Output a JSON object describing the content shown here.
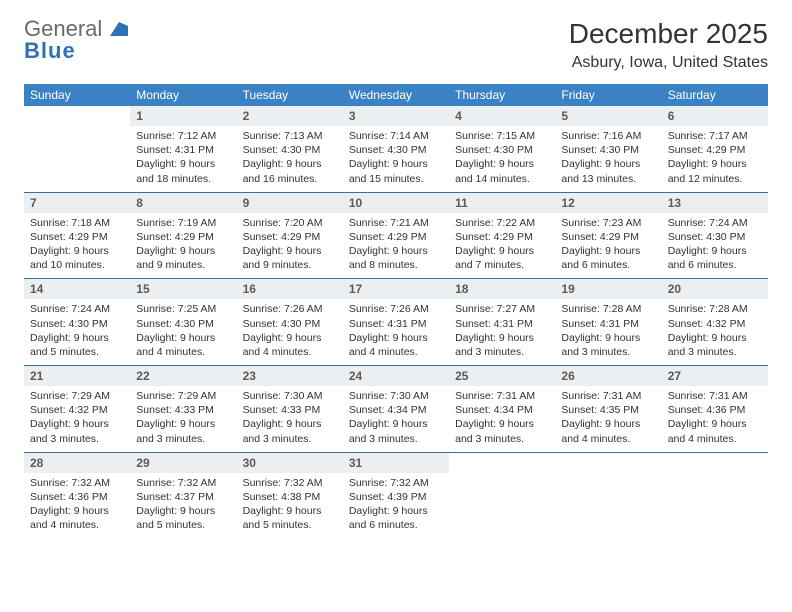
{
  "logo": {
    "part1": "General",
    "part2": "Blue"
  },
  "title": "December 2025",
  "location": "Asbury, Iowa, United States",
  "colors": {
    "header_bg": "#3b82c4",
    "header_fg": "#ffffff",
    "row_divider": "#3b6ea0",
    "daynum_bg": "#eceff1",
    "daynum_fg": "#5a5a5a",
    "body_text": "#333333",
    "logo_general": "#6a6a6a",
    "logo_blue": "#2e72b5"
  },
  "weekdays": [
    "Sunday",
    "Monday",
    "Tuesday",
    "Wednesday",
    "Thursday",
    "Friday",
    "Saturday"
  ],
  "weeks": [
    [
      {
        "day": "",
        "empty": true
      },
      {
        "day": "1",
        "sr": "Sunrise: 7:12 AM",
        "ss": "Sunset: 4:31 PM",
        "dl1": "Daylight: 9 hours",
        "dl2": "and 18 minutes."
      },
      {
        "day": "2",
        "sr": "Sunrise: 7:13 AM",
        "ss": "Sunset: 4:30 PM",
        "dl1": "Daylight: 9 hours",
        "dl2": "and 16 minutes."
      },
      {
        "day": "3",
        "sr": "Sunrise: 7:14 AM",
        "ss": "Sunset: 4:30 PM",
        "dl1": "Daylight: 9 hours",
        "dl2": "and 15 minutes."
      },
      {
        "day": "4",
        "sr": "Sunrise: 7:15 AM",
        "ss": "Sunset: 4:30 PM",
        "dl1": "Daylight: 9 hours",
        "dl2": "and 14 minutes."
      },
      {
        "day": "5",
        "sr": "Sunrise: 7:16 AM",
        "ss": "Sunset: 4:30 PM",
        "dl1": "Daylight: 9 hours",
        "dl2": "and 13 minutes."
      },
      {
        "day": "6",
        "sr": "Sunrise: 7:17 AM",
        "ss": "Sunset: 4:29 PM",
        "dl1": "Daylight: 9 hours",
        "dl2": "and 12 minutes."
      }
    ],
    [
      {
        "day": "7",
        "sr": "Sunrise: 7:18 AM",
        "ss": "Sunset: 4:29 PM",
        "dl1": "Daylight: 9 hours",
        "dl2": "and 10 minutes."
      },
      {
        "day": "8",
        "sr": "Sunrise: 7:19 AM",
        "ss": "Sunset: 4:29 PM",
        "dl1": "Daylight: 9 hours",
        "dl2": "and 9 minutes."
      },
      {
        "day": "9",
        "sr": "Sunrise: 7:20 AM",
        "ss": "Sunset: 4:29 PM",
        "dl1": "Daylight: 9 hours",
        "dl2": "and 9 minutes."
      },
      {
        "day": "10",
        "sr": "Sunrise: 7:21 AM",
        "ss": "Sunset: 4:29 PM",
        "dl1": "Daylight: 9 hours",
        "dl2": "and 8 minutes."
      },
      {
        "day": "11",
        "sr": "Sunrise: 7:22 AM",
        "ss": "Sunset: 4:29 PM",
        "dl1": "Daylight: 9 hours",
        "dl2": "and 7 minutes."
      },
      {
        "day": "12",
        "sr": "Sunrise: 7:23 AM",
        "ss": "Sunset: 4:29 PM",
        "dl1": "Daylight: 9 hours",
        "dl2": "and 6 minutes."
      },
      {
        "day": "13",
        "sr": "Sunrise: 7:24 AM",
        "ss": "Sunset: 4:30 PM",
        "dl1": "Daylight: 9 hours",
        "dl2": "and 6 minutes."
      }
    ],
    [
      {
        "day": "14",
        "sr": "Sunrise: 7:24 AM",
        "ss": "Sunset: 4:30 PM",
        "dl1": "Daylight: 9 hours",
        "dl2": "and 5 minutes."
      },
      {
        "day": "15",
        "sr": "Sunrise: 7:25 AM",
        "ss": "Sunset: 4:30 PM",
        "dl1": "Daylight: 9 hours",
        "dl2": "and 4 minutes."
      },
      {
        "day": "16",
        "sr": "Sunrise: 7:26 AM",
        "ss": "Sunset: 4:30 PM",
        "dl1": "Daylight: 9 hours",
        "dl2": "and 4 minutes."
      },
      {
        "day": "17",
        "sr": "Sunrise: 7:26 AM",
        "ss": "Sunset: 4:31 PM",
        "dl1": "Daylight: 9 hours",
        "dl2": "and 4 minutes."
      },
      {
        "day": "18",
        "sr": "Sunrise: 7:27 AM",
        "ss": "Sunset: 4:31 PM",
        "dl1": "Daylight: 9 hours",
        "dl2": "and 3 minutes."
      },
      {
        "day": "19",
        "sr": "Sunrise: 7:28 AM",
        "ss": "Sunset: 4:31 PM",
        "dl1": "Daylight: 9 hours",
        "dl2": "and 3 minutes."
      },
      {
        "day": "20",
        "sr": "Sunrise: 7:28 AM",
        "ss": "Sunset: 4:32 PM",
        "dl1": "Daylight: 9 hours",
        "dl2": "and 3 minutes."
      }
    ],
    [
      {
        "day": "21",
        "sr": "Sunrise: 7:29 AM",
        "ss": "Sunset: 4:32 PM",
        "dl1": "Daylight: 9 hours",
        "dl2": "and 3 minutes."
      },
      {
        "day": "22",
        "sr": "Sunrise: 7:29 AM",
        "ss": "Sunset: 4:33 PM",
        "dl1": "Daylight: 9 hours",
        "dl2": "and 3 minutes."
      },
      {
        "day": "23",
        "sr": "Sunrise: 7:30 AM",
        "ss": "Sunset: 4:33 PM",
        "dl1": "Daylight: 9 hours",
        "dl2": "and 3 minutes."
      },
      {
        "day": "24",
        "sr": "Sunrise: 7:30 AM",
        "ss": "Sunset: 4:34 PM",
        "dl1": "Daylight: 9 hours",
        "dl2": "and 3 minutes."
      },
      {
        "day": "25",
        "sr": "Sunrise: 7:31 AM",
        "ss": "Sunset: 4:34 PM",
        "dl1": "Daylight: 9 hours",
        "dl2": "and 3 minutes."
      },
      {
        "day": "26",
        "sr": "Sunrise: 7:31 AM",
        "ss": "Sunset: 4:35 PM",
        "dl1": "Daylight: 9 hours",
        "dl2": "and 4 minutes."
      },
      {
        "day": "27",
        "sr": "Sunrise: 7:31 AM",
        "ss": "Sunset: 4:36 PM",
        "dl1": "Daylight: 9 hours",
        "dl2": "and 4 minutes."
      }
    ],
    [
      {
        "day": "28",
        "sr": "Sunrise: 7:32 AM",
        "ss": "Sunset: 4:36 PM",
        "dl1": "Daylight: 9 hours",
        "dl2": "and 4 minutes."
      },
      {
        "day": "29",
        "sr": "Sunrise: 7:32 AM",
        "ss": "Sunset: 4:37 PM",
        "dl1": "Daylight: 9 hours",
        "dl2": "and 5 minutes."
      },
      {
        "day": "30",
        "sr": "Sunrise: 7:32 AM",
        "ss": "Sunset: 4:38 PM",
        "dl1": "Daylight: 9 hours",
        "dl2": "and 5 minutes."
      },
      {
        "day": "31",
        "sr": "Sunrise: 7:32 AM",
        "ss": "Sunset: 4:39 PM",
        "dl1": "Daylight: 9 hours",
        "dl2": "and 6 minutes."
      },
      {
        "day": "",
        "empty": true
      },
      {
        "day": "",
        "empty": true
      },
      {
        "day": "",
        "empty": true
      }
    ]
  ]
}
